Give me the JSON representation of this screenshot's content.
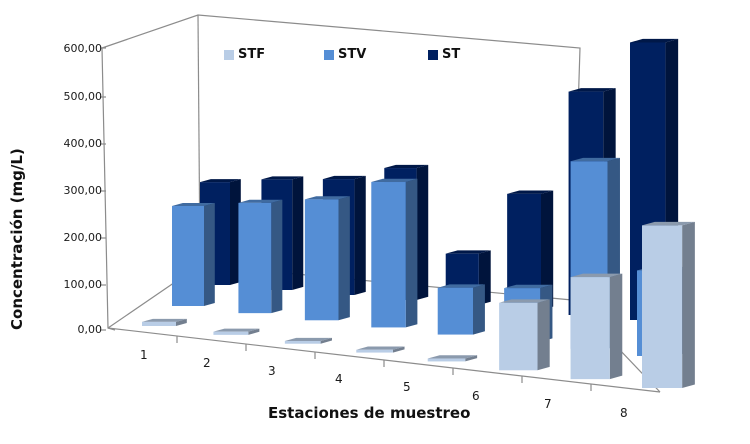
{
  "chart_data": {
    "type": "bar",
    "subtype": "3d-clustered-column",
    "title": "",
    "xlabel": "Estaciones de muestreo",
    "ylabel": "Concentración (mg/L)",
    "ylim": [
      0,
      600
    ],
    "yticks": [
      "0,00",
      "100,00",
      "200,00",
      "300,00",
      "400,00",
      "500,00",
      "600,00"
    ],
    "categories": [
      "1",
      "2",
      "3",
      "4",
      "5",
      "6",
      "7",
      "8"
    ],
    "series": [
      {
        "name": "STF",
        "color": "#b9cde6",
        "values": [
          8,
          6,
          5,
          5,
          5,
          115,
          170,
          265
        ]
      },
      {
        "name": "STV",
        "color": "#558ed5",
        "values": [
          200,
          215,
          230,
          270,
          85,
          95,
          325,
          145
        ]
      },
      {
        "name": "ST",
        "color": "#002060",
        "values": [
          210,
          220,
          225,
          250,
          95,
          210,
          395,
          480
        ]
      }
    ],
    "legend_position": "top-inside",
    "grid": false
  }
}
